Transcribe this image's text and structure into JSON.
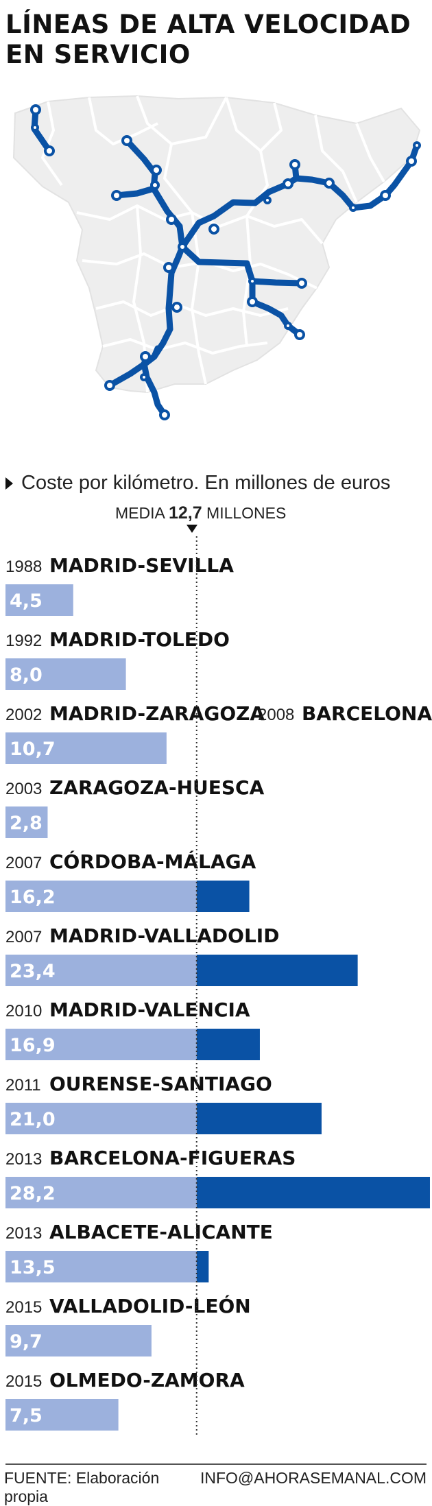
{
  "title_line1": "LÍNEAS DE ALTA VELOCIDAD",
  "title_line2": "EN SERVICIO",
  "subtitle": "Coste por kilómetro. En millones de euros",
  "media": {
    "prefix": "MEDIA",
    "value_label": "12,7",
    "suffix": "MILLONES"
  },
  "footer": {
    "source": "FUENTE: Elaboración propia",
    "contact": "INFO@AHORASEMANAL.COM"
  },
  "colors": {
    "bar_light": "#9cb1dd",
    "bar_dark": "#0a52a5",
    "map_line": "#0a52a5",
    "map_land": "#eeeeee",
    "map_border": "#ffffff"
  },
  "chart_data": {
    "type": "bar",
    "orientation": "horizontal",
    "unit": "millones de euros por km",
    "reference_line": {
      "label": "MEDIA",
      "value": 12.7
    },
    "rows": [
      {
        "year": "1988",
        "name": "MADRID-SEVILLA",
        "value": 4.5,
        "value_label": "4,5"
      },
      {
        "year": "1992",
        "name": "MADRID-TOLEDO",
        "value": 8.0,
        "value_label": "8,0"
      },
      {
        "year": "2002",
        "name": "MADRID-ZARAGOZA",
        "extra_year": "2008",
        "extra_name": "BARCELONA",
        "value": 10.7,
        "value_label": "10,7"
      },
      {
        "year": "2003",
        "name": "ZARAGOZA-HUESCA",
        "value": 2.8,
        "value_label": "2,8"
      },
      {
        "year": "2007",
        "name": "CÓRDOBA-MÁLAGA",
        "value": 16.2,
        "value_label": "16,2"
      },
      {
        "year": "2007",
        "name": "MADRID-VALLADOLID",
        "value": 23.4,
        "value_label": "23,4"
      },
      {
        "year": "2010",
        "name": "MADRID-VALENCIA",
        "value": 16.9,
        "value_label": "16,9"
      },
      {
        "year": "2011",
        "name": "OURENSE-SANTIAGO",
        "value": 21.0,
        "value_label": "21,0"
      },
      {
        "year": "2013",
        "name": "BARCELONA-FIGUERAS",
        "value": 28.2,
        "value_label": "28,2"
      },
      {
        "year": "2013",
        "name": "ALBACETE-ALICANTE",
        "value": 13.5,
        "value_label": "13,5"
      },
      {
        "year": "2015",
        "name": "VALLADOLID-LEÓN",
        "value": 9.7,
        "value_label": "9,7"
      },
      {
        "year": "2015",
        "name": "OLMEDO-ZAMORA",
        "value": 7.5,
        "value_label": "7,5"
      }
    ]
  }
}
